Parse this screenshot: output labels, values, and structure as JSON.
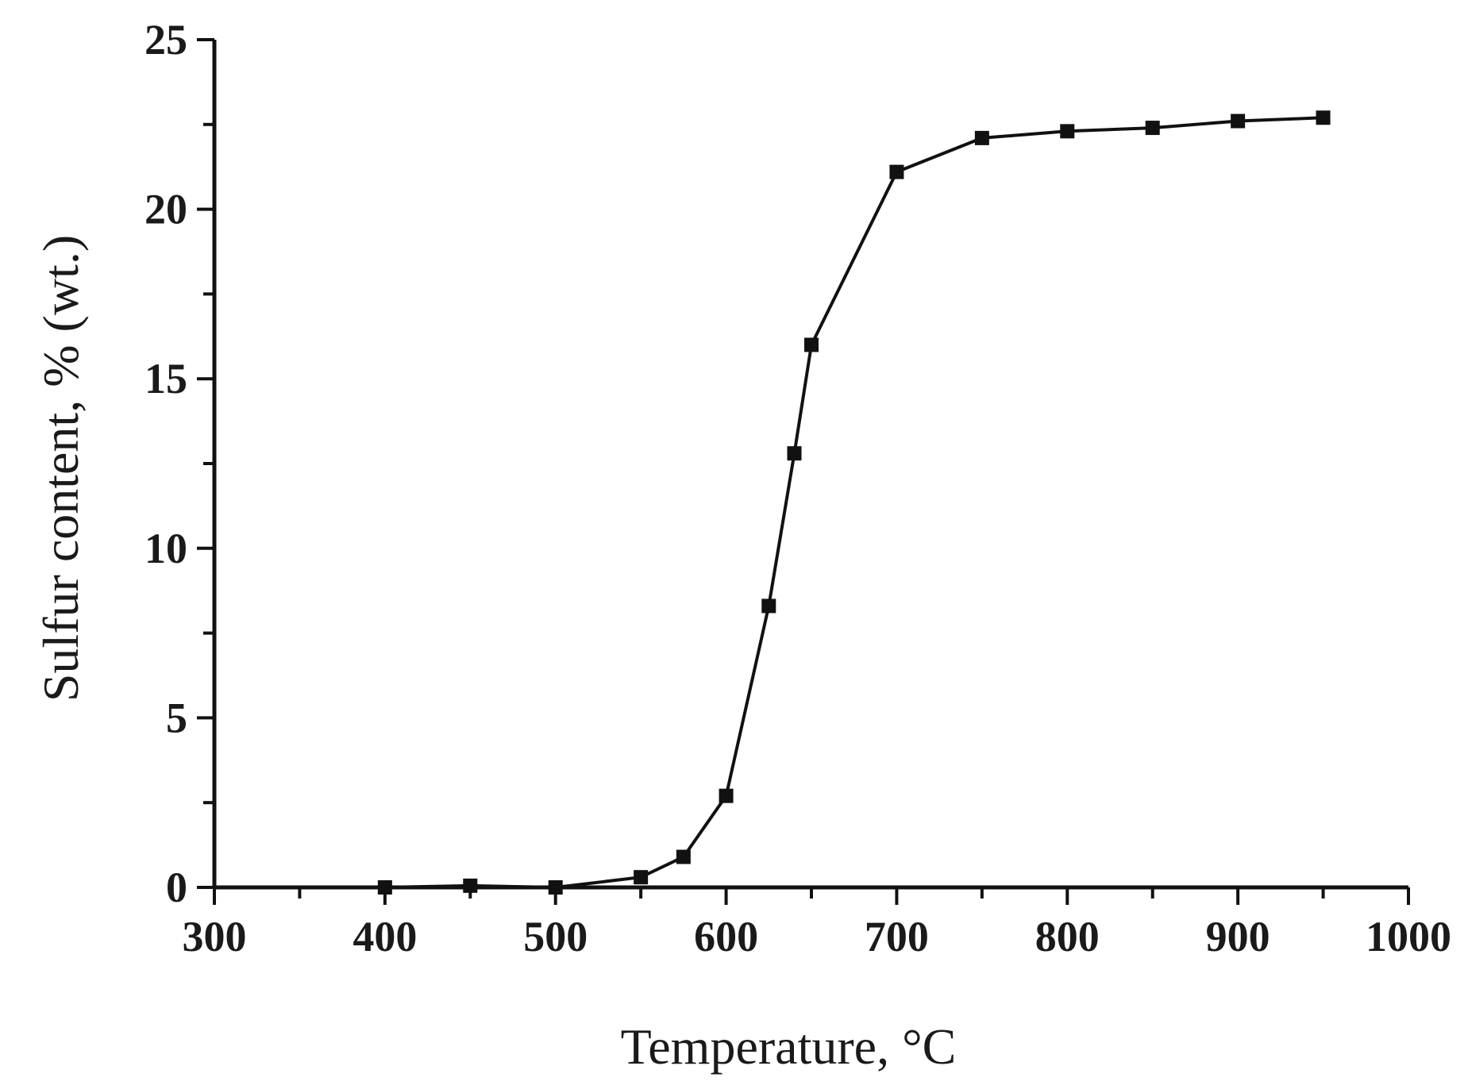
{
  "chart_data": {
    "type": "line",
    "title": "",
    "xlabel": "Temperature, °C",
    "ylabel": "Sulfur content, % (wt.)",
    "xlim": [
      300,
      1000
    ],
    "ylim": [
      0,
      25
    ],
    "x_ticks": [
      300,
      400,
      500,
      600,
      700,
      800,
      900,
      1000
    ],
    "y_ticks": [
      0,
      5,
      10,
      15,
      20,
      25
    ],
    "x_minor_step": 50,
    "y_minor_step": 2.5,
    "grid": false,
    "colors": {
      "axis": "#111111",
      "series": "#111111",
      "text": "#1a1a1a",
      "ylabel": "#3a2a1a"
    },
    "series": [
      {
        "marker": "square",
        "x": [
          400,
          450,
          500,
          550,
          575,
          600,
          625,
          640,
          650,
          700,
          750,
          800,
          850,
          900,
          950
        ],
        "y": [
          0.0,
          0.05,
          0.0,
          0.3,
          0.9,
          2.7,
          8.3,
          12.8,
          16.0,
          21.1,
          22.1,
          22.3,
          22.4,
          22.6,
          22.7
        ]
      }
    ]
  }
}
